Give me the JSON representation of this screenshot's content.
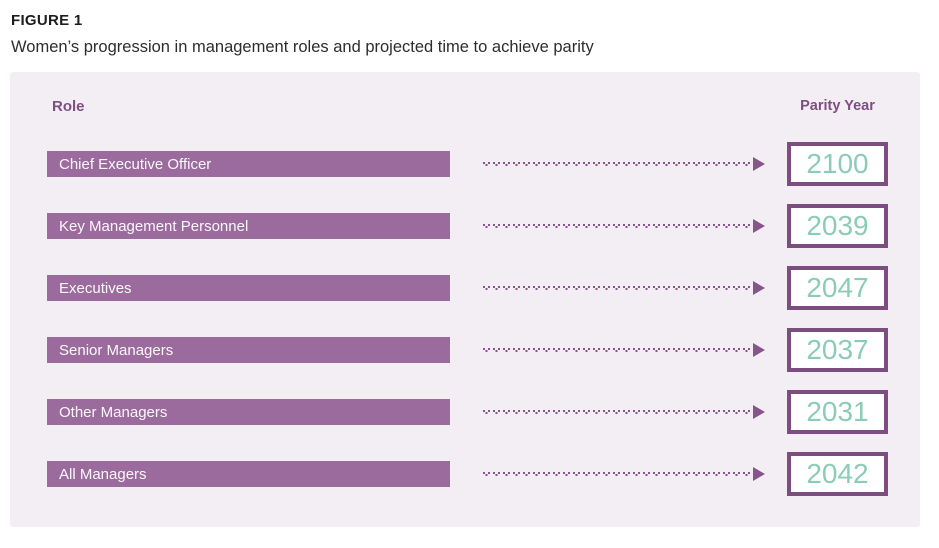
{
  "figure": {
    "label": "FIGURE 1",
    "title": "Women’s progression in management roles and projected time to achieve parity"
  },
  "headers": {
    "role": "Role",
    "parity_year": "Parity Year"
  },
  "rows": [
    {
      "role": "Chief Executive Officer",
      "year": "2100"
    },
    {
      "role": "Key Management Personnel",
      "year": "2039"
    },
    {
      "role": "Executives",
      "year": "2047"
    },
    {
      "role": "Senior Managers",
      "year": "2037"
    },
    {
      "role": "Other Managers",
      "year": "2031"
    },
    {
      "role": "All Managers",
      "year": "2042"
    }
  ],
  "colors": {
    "bar_purple": "#9c6b9d",
    "box_border_purple": "#7c4e80",
    "dotted_line_purple": "#86568a",
    "year_teal": "#8bcdb4",
    "panel_background": "#f3eef3",
    "header_text_purple": "#7d4f80"
  },
  "chart_data": {
    "type": "table",
    "figure_label": "FIGURE 1",
    "title": "Women’s progression in management roles and projected time to achieve parity",
    "columns": [
      "Role",
      "Parity Year"
    ],
    "categories": [
      "Chief Executive Officer",
      "Key Management Personnel",
      "Executives",
      "Senior Managers",
      "Other Managers",
      "All Managers"
    ],
    "values": [
      2100,
      2039,
      2047,
      2037,
      2031,
      2042
    ],
    "legend": "none",
    "notes": "Each role bar connects via a dotted arrow to its projected parity year shown in a bordered box"
  }
}
